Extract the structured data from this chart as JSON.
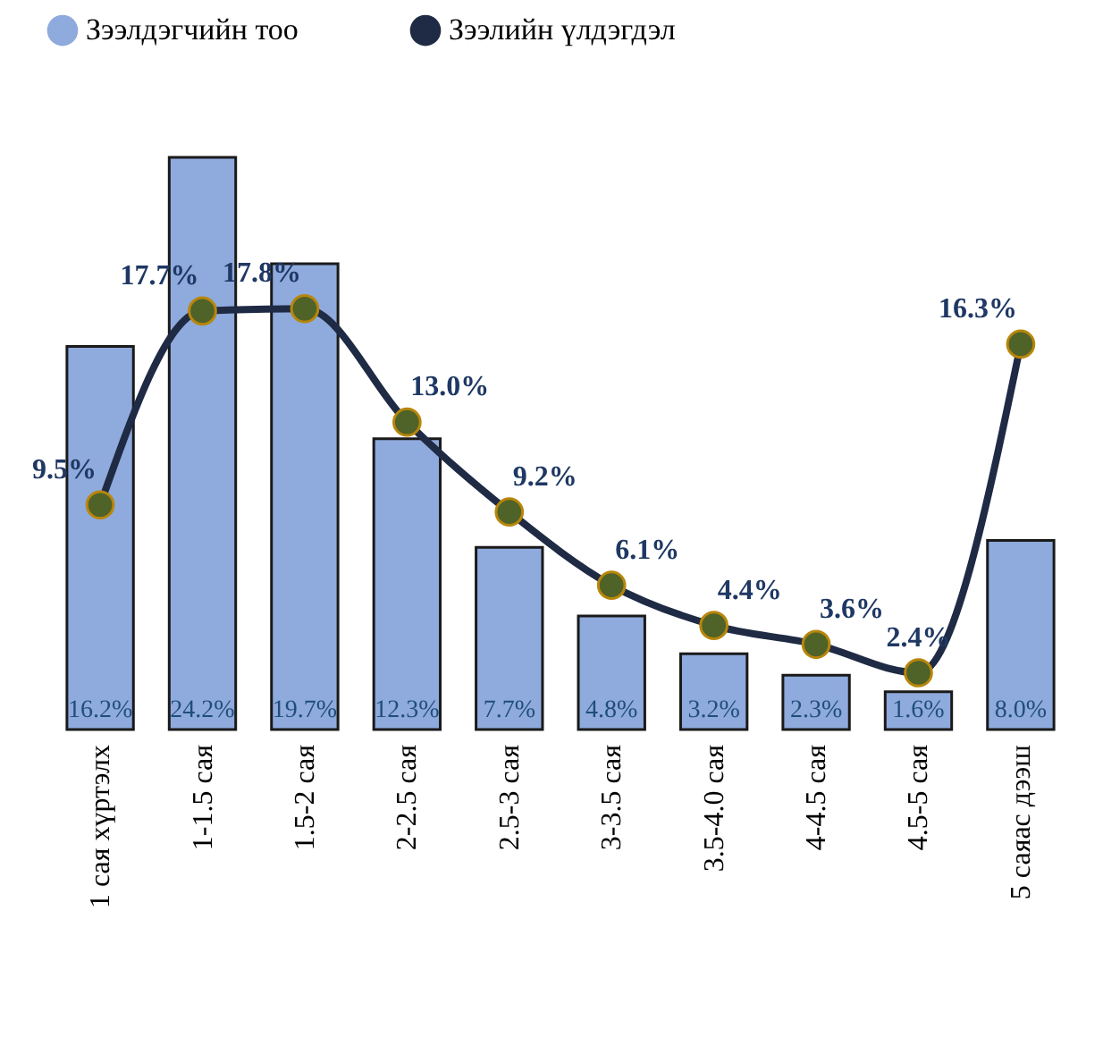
{
  "chart_data": {
    "type": "bar",
    "categories": [
      "1 сая хүртэлх",
      "1-1.5 сая",
      "1.5-2 сая",
      "2-2.5 сая",
      "2.5-3 сая",
      "3-3.5 сая",
      "3.5-4.0 сая",
      "4-4.5 сая",
      "4.5-5 сая",
      "5 саяас дээш"
    ],
    "series": [
      {
        "name": "Зээлдэгчийн тоо",
        "color": "#8faadc",
        "values": [
          16.2,
          24.2,
          19.7,
          12.3,
          7.7,
          4.8,
          3.2,
          2.3,
          1.6,
          8.0
        ],
        "value_labels": [
          "16.2%",
          "24.2%",
          "19.7%",
          "12.3%",
          "7.7%",
          "4.8%",
          "3.2%",
          "2.3%",
          "1.6%",
          "8.0%"
        ]
      },
      {
        "name": "Зээлийн үлдэгдэл",
        "type": "line",
        "color": "#1f2a44",
        "values": [
          9.5,
          17.7,
          17.8,
          13.0,
          9.2,
          6.1,
          4.4,
          3.6,
          2.4,
          16.3
        ],
        "value_labels": [
          "9.5%",
          "17.7%",
          "17.8%",
          "13.0%",
          "9.2%",
          "6.1%",
          "4.4%",
          "3.6%",
          "2.4%",
          "16.3%"
        ]
      }
    ],
    "legend": "top",
    "marker": "circle",
    "tick_labels": "x",
    "grid": false
  }
}
